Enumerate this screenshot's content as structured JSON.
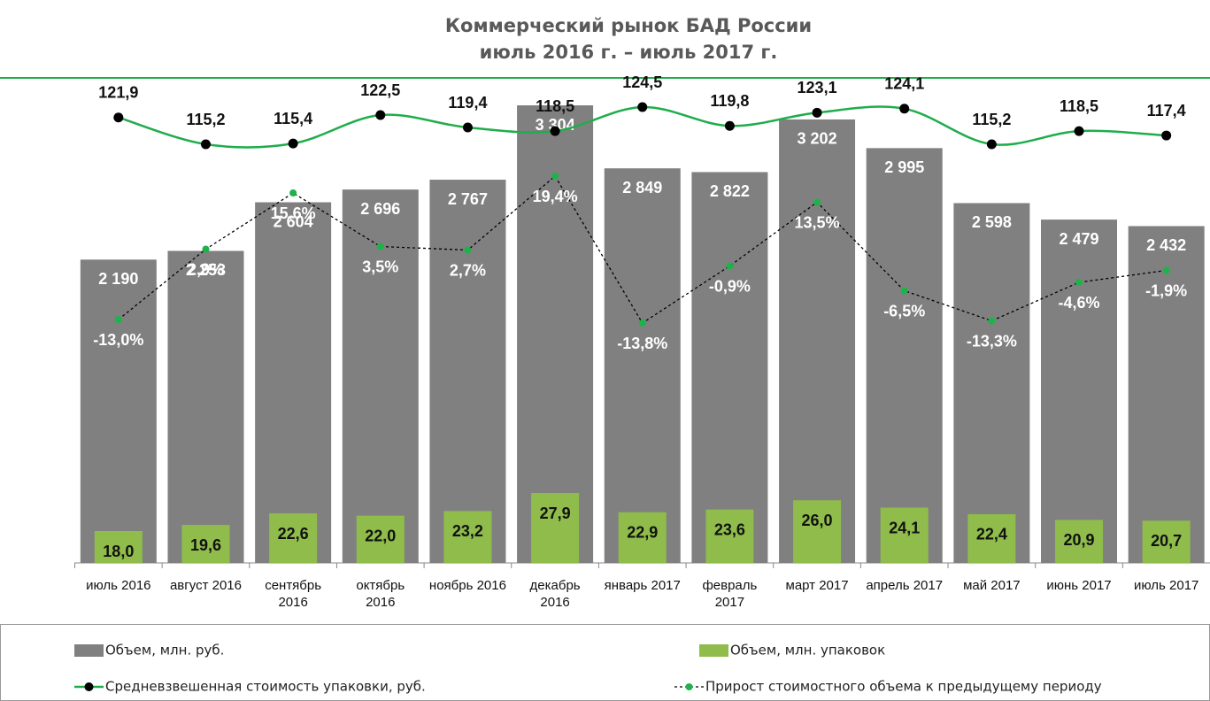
{
  "chart_data": {
    "type": "bar-line",
    "title": "Коммерческий рынок БАД России",
    "subtitle": "июль 2016 г. – июль 2017 г.",
    "categories": [
      "июль 2016",
      "август 2016",
      "сентябрь 2016",
      "октябрь 2016",
      "ноябрь 2016",
      "декабрь 2016",
      "январь 2017",
      "февраль 2017",
      "март 2017",
      "апрель 2017",
      "май 2017",
      "июнь 2017",
      "июль 2017"
    ],
    "series": [
      {
        "name": "Объем, млн. руб.",
        "type": "bar",
        "color": "#808080",
        "values": [
          2190,
          2253,
          2604,
          2696,
          2767,
          3304,
          2849,
          2822,
          3202,
          2995,
          2598,
          2479,
          2432
        ],
        "value_labels": [
          "2 190",
          "2 253",
          "2 604",
          "2 696",
          "2 767",
          "3 304",
          "2 849",
          "2 822",
          "3 202",
          "2 995",
          "2 598",
          "2 479",
          "2 432"
        ]
      },
      {
        "name": "Объем, млн. упаковок",
        "type": "bar",
        "color": "#8fbc4b",
        "values": [
          18.0,
          19.6,
          22.6,
          22.0,
          23.2,
          27.9,
          22.9,
          23.6,
          26.0,
          24.1,
          22.4,
          20.9,
          20.7
        ],
        "value_labels": [
          "18,0",
          "19,6",
          "22,6",
          "22,0",
          "23,2",
          "27,9",
          "22,9",
          "23,6",
          "26,0",
          "24,1",
          "22,4",
          "20,9",
          "20,7"
        ]
      },
      {
        "name": "Средневзвешенная стоимость упаковки, руб.",
        "type": "line",
        "color": "#1fad4b",
        "marker_color": "#000000",
        "values": [
          121.9,
          115.2,
          115.4,
          122.5,
          119.4,
          118.5,
          124.5,
          119.8,
          123.1,
          124.1,
          115.2,
          118.5,
          117.4
        ],
        "value_labels": [
          "121,9",
          "115,2",
          "115,4",
          "122,5",
          "119,4",
          "118,5",
          "124,5",
          "119,8",
          "123,1",
          "124,1",
          "115,2",
          "118,5",
          "117,4"
        ]
      },
      {
        "name": "Прирост стоимостного объема к предыдущему периоду",
        "type": "dotted-line",
        "color": "#000000",
        "marker_color": "#1db34a",
        "values": [
          -13.0,
          2.9,
          15.6,
          3.5,
          2.7,
          19.4,
          -13.8,
          -0.9,
          13.5,
          -6.5,
          -13.3,
          -4.6,
          -1.9
        ],
        "value_labels": [
          "-13,0%",
          "2,9%",
          "15,6%",
          "3,5%",
          "2,7%",
          "19,4%",
          "-13,8%",
          "-0,9%",
          "13,5%",
          "-6,5%",
          "-13,3%",
          "-4,6%",
          "-1,9%"
        ]
      }
    ]
  }
}
